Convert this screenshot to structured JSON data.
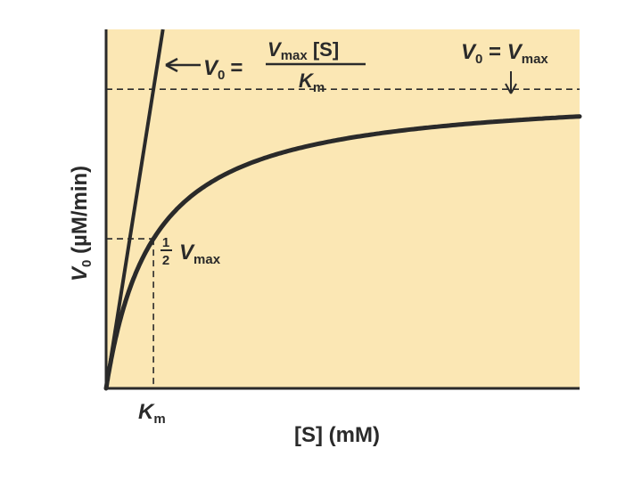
{
  "chart_data": {
    "type": "line",
    "title": "",
    "xlabel": "[S] (mM)",
    "ylabel": "V₀ (µM/min)",
    "x_unit": "mM",
    "y_unit": "µM/min",
    "xlim": [
      0,
      10
    ],
    "ylim": [
      0,
      1.2
    ],
    "Km": 1.0,
    "Vmax": 1.0,
    "background_color": "#fbe7b4",
    "curve_color": "#2a2a2a",
    "grid": false,
    "series": [
      {
        "name": "",
        "kind": "michaelis-menten-curve",
        "formula": "V0 = Vmax[S]/(Km + [S])"
      },
      {
        "name": "",
        "kind": "initial-slope-line",
        "formula": "V0 = Vmax[S]/Km"
      }
    ],
    "reference_lines": [
      {
        "orientation": "horizontal",
        "value": 1.0,
        "style": "dashed",
        "label": "V0 = Vmax"
      },
      {
        "orientation": "horizontal",
        "value": 0.5,
        "style": "dashed",
        "label": "1/2 Vmax"
      },
      {
        "orientation": "vertical",
        "value": 1.0,
        "style": "dashed",
        "label": "Km"
      }
    ],
    "annotations": {
      "slope_eq": {
        "lhs_var": "V",
        "lhs_sub": "0",
        "eq": "=",
        "num_var": "V",
        "num_sub": "max",
        "num_rest": " [S]",
        "den_var": "K",
        "den_sub": "m"
      },
      "vmax_eq": {
        "lhs_var": "V",
        "lhs_sub": "0",
        "eq": " = ",
        "rhs_var": "V",
        "rhs_sub": "max"
      },
      "half_vmax": {
        "num": "1",
        "den": "2",
        "var": "V",
        "sub": "max"
      },
      "km_tick": {
        "var": "K",
        "sub": "m"
      }
    },
    "axis_labels": {
      "y": {
        "var": "V",
        "sub": "0",
        "rest": " (µM/min)"
      },
      "x": {
        "text": "[S] (mM)"
      }
    }
  }
}
